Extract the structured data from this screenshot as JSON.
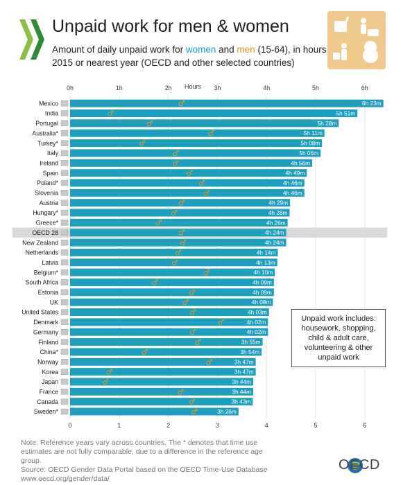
{
  "header": {
    "title": "Unpaid work for men & women",
    "subtitle_pre": "Amount of daily unpaid work for ",
    "subtitle_women": "women",
    "subtitle_and": " and ",
    "subtitle_men": "men",
    "subtitle_post": " (15-64), in hours",
    "subtitle_line2": "2015 or nearest year (OECD and other selected countries)"
  },
  "infobox": {
    "text": "Unpaid work includes: housework, shopping, child & adult care, volunteering & other unpaid work"
  },
  "footnote": {
    "line1": "Note: Reference years vary across countries. The * denotes that time use estimates are not fully comparable, due to a difference in the reference age group.",
    "line2": "Source: OECD Gender Data Portal based on the OECD Time-Use Database",
    "line3": "www.oecd.org/gender/data/"
  },
  "brand": {
    "name": "OECD"
  },
  "colors": {
    "women_bar": "#1f9fc0",
    "men_marker": "#e39a23",
    "oecd_highlight": "#d9d9d9"
  },
  "chart_data": {
    "type": "bar",
    "orientation": "horizontal",
    "xlabel": "Hours",
    "xlim": [
      0,
      6.4
    ],
    "top_ticks": [
      "0h",
      "1h",
      "2h",
      "3h",
      "4h",
      "5h",
      "6h"
    ],
    "bottom_ticks": [
      "0",
      "1",
      "2",
      "3",
      "4",
      "5",
      "6"
    ],
    "categories": [
      "Mexico",
      "India",
      "Portugal",
      "Australia*",
      "Turkey*",
      "Italy",
      "Ireland",
      "Spain",
      "Poland*",
      "Slovenia",
      "Austria",
      "Hungary*",
      "Greece*",
      "OECD 28",
      "New Zealand",
      "Netherlands",
      "Latvia",
      "Belgium*",
      "South Africa",
      "Estonia",
      "UK",
      "United States",
      "Denmark",
      "Germany",
      "Finland",
      "China*",
      "Norway",
      "Korea",
      "Japan",
      "France",
      "Canada",
      "Sweden*"
    ],
    "highlight": "OECD 28",
    "series": [
      {
        "name": "women",
        "values": [
          6.38,
          5.85,
          5.47,
          5.18,
          5.13,
          5.1,
          4.93,
          4.82,
          4.77,
          4.77,
          4.48,
          4.47,
          4.43,
          4.4,
          4.4,
          4.23,
          4.22,
          4.17,
          4.15,
          4.15,
          4.13,
          4.05,
          4.03,
          4.03,
          3.92,
          3.9,
          3.78,
          3.78,
          3.73,
          3.73,
          3.72,
          3.43
        ],
        "labels": [
          "6h 23m",
          "5h 51m",
          "5h 28m",
          "5h 11m",
          "5h 08m",
          "5h 06m",
          "4h 56m",
          "4h 49m",
          "4h 46m",
          "4h 46m",
          "4h 29m",
          "4h 28m",
          "4h 26m",
          "4h 24m",
          "4h 24m",
          "4h 14m",
          "4h 13m",
          "4h 10m",
          "4h 09m",
          "4h 09m",
          "4h 08m",
          "4h 03m",
          "4h 02m",
          "4h 02m",
          "3h 55m",
          "3h 54m",
          "3h 47m",
          "3h 47m",
          "3h 44m",
          "3h 44m",
          "3h 43m",
          "3h 26m"
        ]
      },
      {
        "name": "men",
        "values": [
          2.27,
          0.82,
          1.62,
          2.87,
          1.47,
          2.15,
          2.15,
          2.43,
          2.68,
          2.78,
          2.27,
          2.12,
          1.8,
          2.27,
          2.3,
          2.2,
          2.13,
          2.78,
          1.73,
          2.48,
          2.35,
          2.5,
          3.07,
          2.5,
          2.6,
          1.52,
          2.83,
          0.8,
          0.72,
          2.25,
          2.48,
          2.53
        ]
      }
    ]
  }
}
